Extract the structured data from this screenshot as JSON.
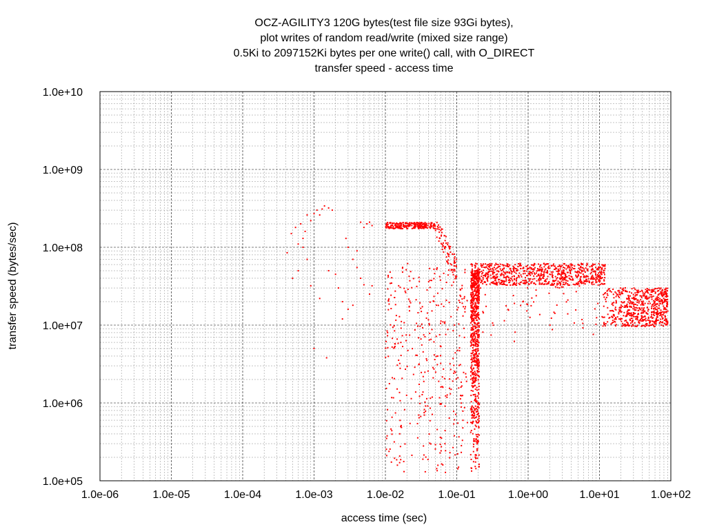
{
  "chart_data": {
    "type": "scatter",
    "title": [
      "OCZ-AGILITY3 120G bytes(test file size 93Gi bytes),",
      "plot writes of random read/write (mixed size range)",
      "0.5Ki to 2097152Ki bytes per one write() call, with O_DIRECT",
      "transfer speed - access time"
    ],
    "xlabel": "access time (sec)",
    "ylabel": "transfer speed (bytes/sec)",
    "x_scale": "log",
    "y_scale": "log",
    "xlim": [
      1e-06,
      100
    ],
    "ylim": [
      100000,
      10000000000
    ],
    "x_ticks": [
      1e-06,
      1e-05,
      0.0001,
      0.001,
      0.01,
      0.1,
      1,
      10,
      100
    ],
    "x_tick_labels": [
      "1.0e-06",
      "1.0e-05",
      "1.0e-04",
      "1.0e-03",
      "1.0e-02",
      "1.0e-01",
      "1.0e+00",
      "1.0e+01",
      "1.0e+02"
    ],
    "y_ticks": [
      100000,
      1000000,
      10000000,
      100000000,
      1000000000,
      10000000000
    ],
    "y_tick_labels": [
      "1.0e+05",
      "1.0e+06",
      "1.0e+07",
      "1.0e+08",
      "1.0e+09",
      "1.0e+10"
    ],
    "grid": true,
    "marker_color": "#ff0000",
    "series": [
      {
        "points": [
          [
            0.00042,
            85000000
          ],
          [
            0.00048,
            150000000
          ],
          [
            0.00055,
            180000000
          ],
          [
            0.0006,
            110000000
          ],
          [
            0.00065,
            200000000
          ],
          [
            0.0007,
            130000000
          ],
          [
            0.00075,
            160000000
          ],
          [
            0.0008,
            260000000
          ],
          [
            0.0009,
            220000000
          ],
          [
            0.001,
            270000000
          ],
          [
            0.0011,
            300000000
          ],
          [
            0.0012,
            260000000
          ],
          [
            0.0013,
            310000000
          ],
          [
            0.0014,
            340000000
          ],
          [
            0.0016,
            320000000
          ],
          [
            0.0018,
            300000000
          ],
          [
            0.0005,
            40000000
          ],
          [
            0.0006,
            50000000
          ],
          [
            0.0009,
            32000000
          ],
          [
            0.0012,
            22000000
          ],
          [
            0.0016,
            50000000
          ],
          [
            0.002,
            45000000
          ],
          [
            0.0022,
            30000000
          ],
          [
            0.0025,
            20000000
          ],
          [
            0.0015,
            3800000
          ],
          [
            0.0028,
            130000000
          ],
          [
            0.003,
            100000000
          ],
          [
            0.0035,
            70000000
          ],
          [
            0.004,
            90000000
          ],
          [
            0.0045,
            210000000
          ],
          [
            0.005,
            180000000
          ],
          [
            0.0055,
            200000000
          ],
          [
            0.006,
            210000000
          ],
          [
            0.0065,
            190000000
          ],
          [
            0.0045,
            40000000
          ],
          [
            0.005,
            33000000
          ],
          [
            0.006,
            25000000
          ],
          [
            0.0065,
            32000000
          ],
          [
            0.003,
            16000000
          ],
          [
            0.0025,
            12000000
          ],
          [
            0.004,
            55000000
          ],
          [
            0.0035,
            18000000
          ],
          [
            0.001,
            5000000
          ],
          [
            0.0008,
            70000000
          ],
          [
            0.0007,
            100000000
          ]
        ]
      }
    ]
  }
}
